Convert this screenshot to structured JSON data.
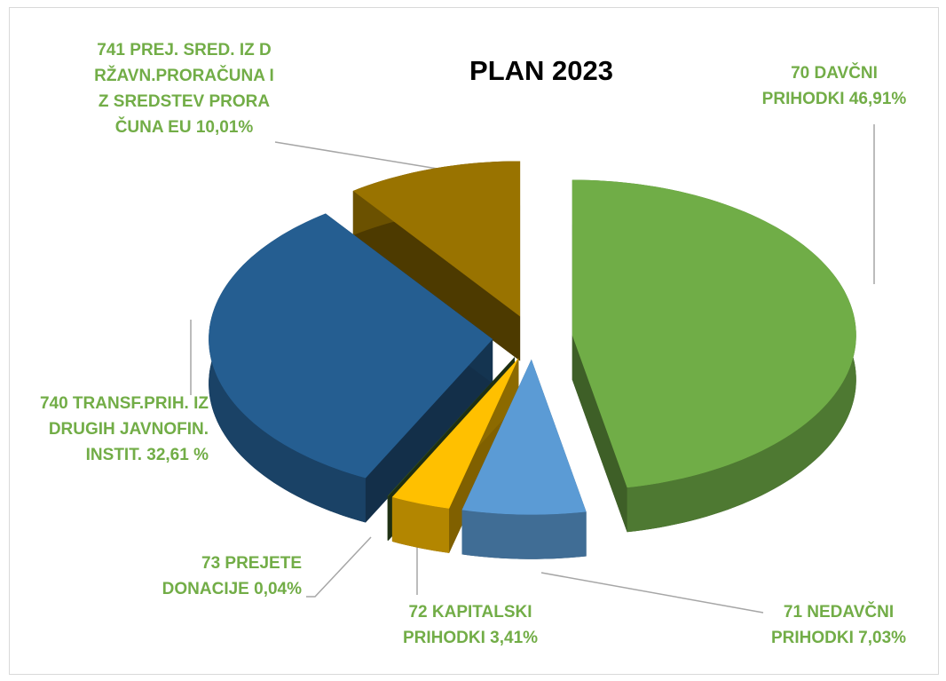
{
  "chart_data": {
    "type": "pie",
    "title": "PLAN 2023",
    "categories": [
      "70 DAVČNI PRIHODKI",
      "71 NEDAVČNI PRIHODKI",
      "72 KAPITALSKI PRIHODKI",
      "73 PREJETE DONACIJE",
      "740 TRANSF.PRIH. IZ DRUGIH JAVNOFIN. INSTIT.",
      "741 PREJ. SRED. IZ DRŽAVN.PRORAČUNA IZ SREDSTEV PRORAČUNA EU"
    ],
    "values": [
      46.91,
      7.03,
      3.41,
      0.04,
      32.61,
      10.01
    ],
    "value_labels": [
      "46,91%",
      "7,03%",
      "3,41%",
      "0,04%",
      "32,61 %",
      "10,01%"
    ],
    "colors": [
      "#70ad47",
      "#5b9bd5",
      "#ffc000",
      "#375623",
      "#255e91",
      "#997300"
    ]
  }
}
